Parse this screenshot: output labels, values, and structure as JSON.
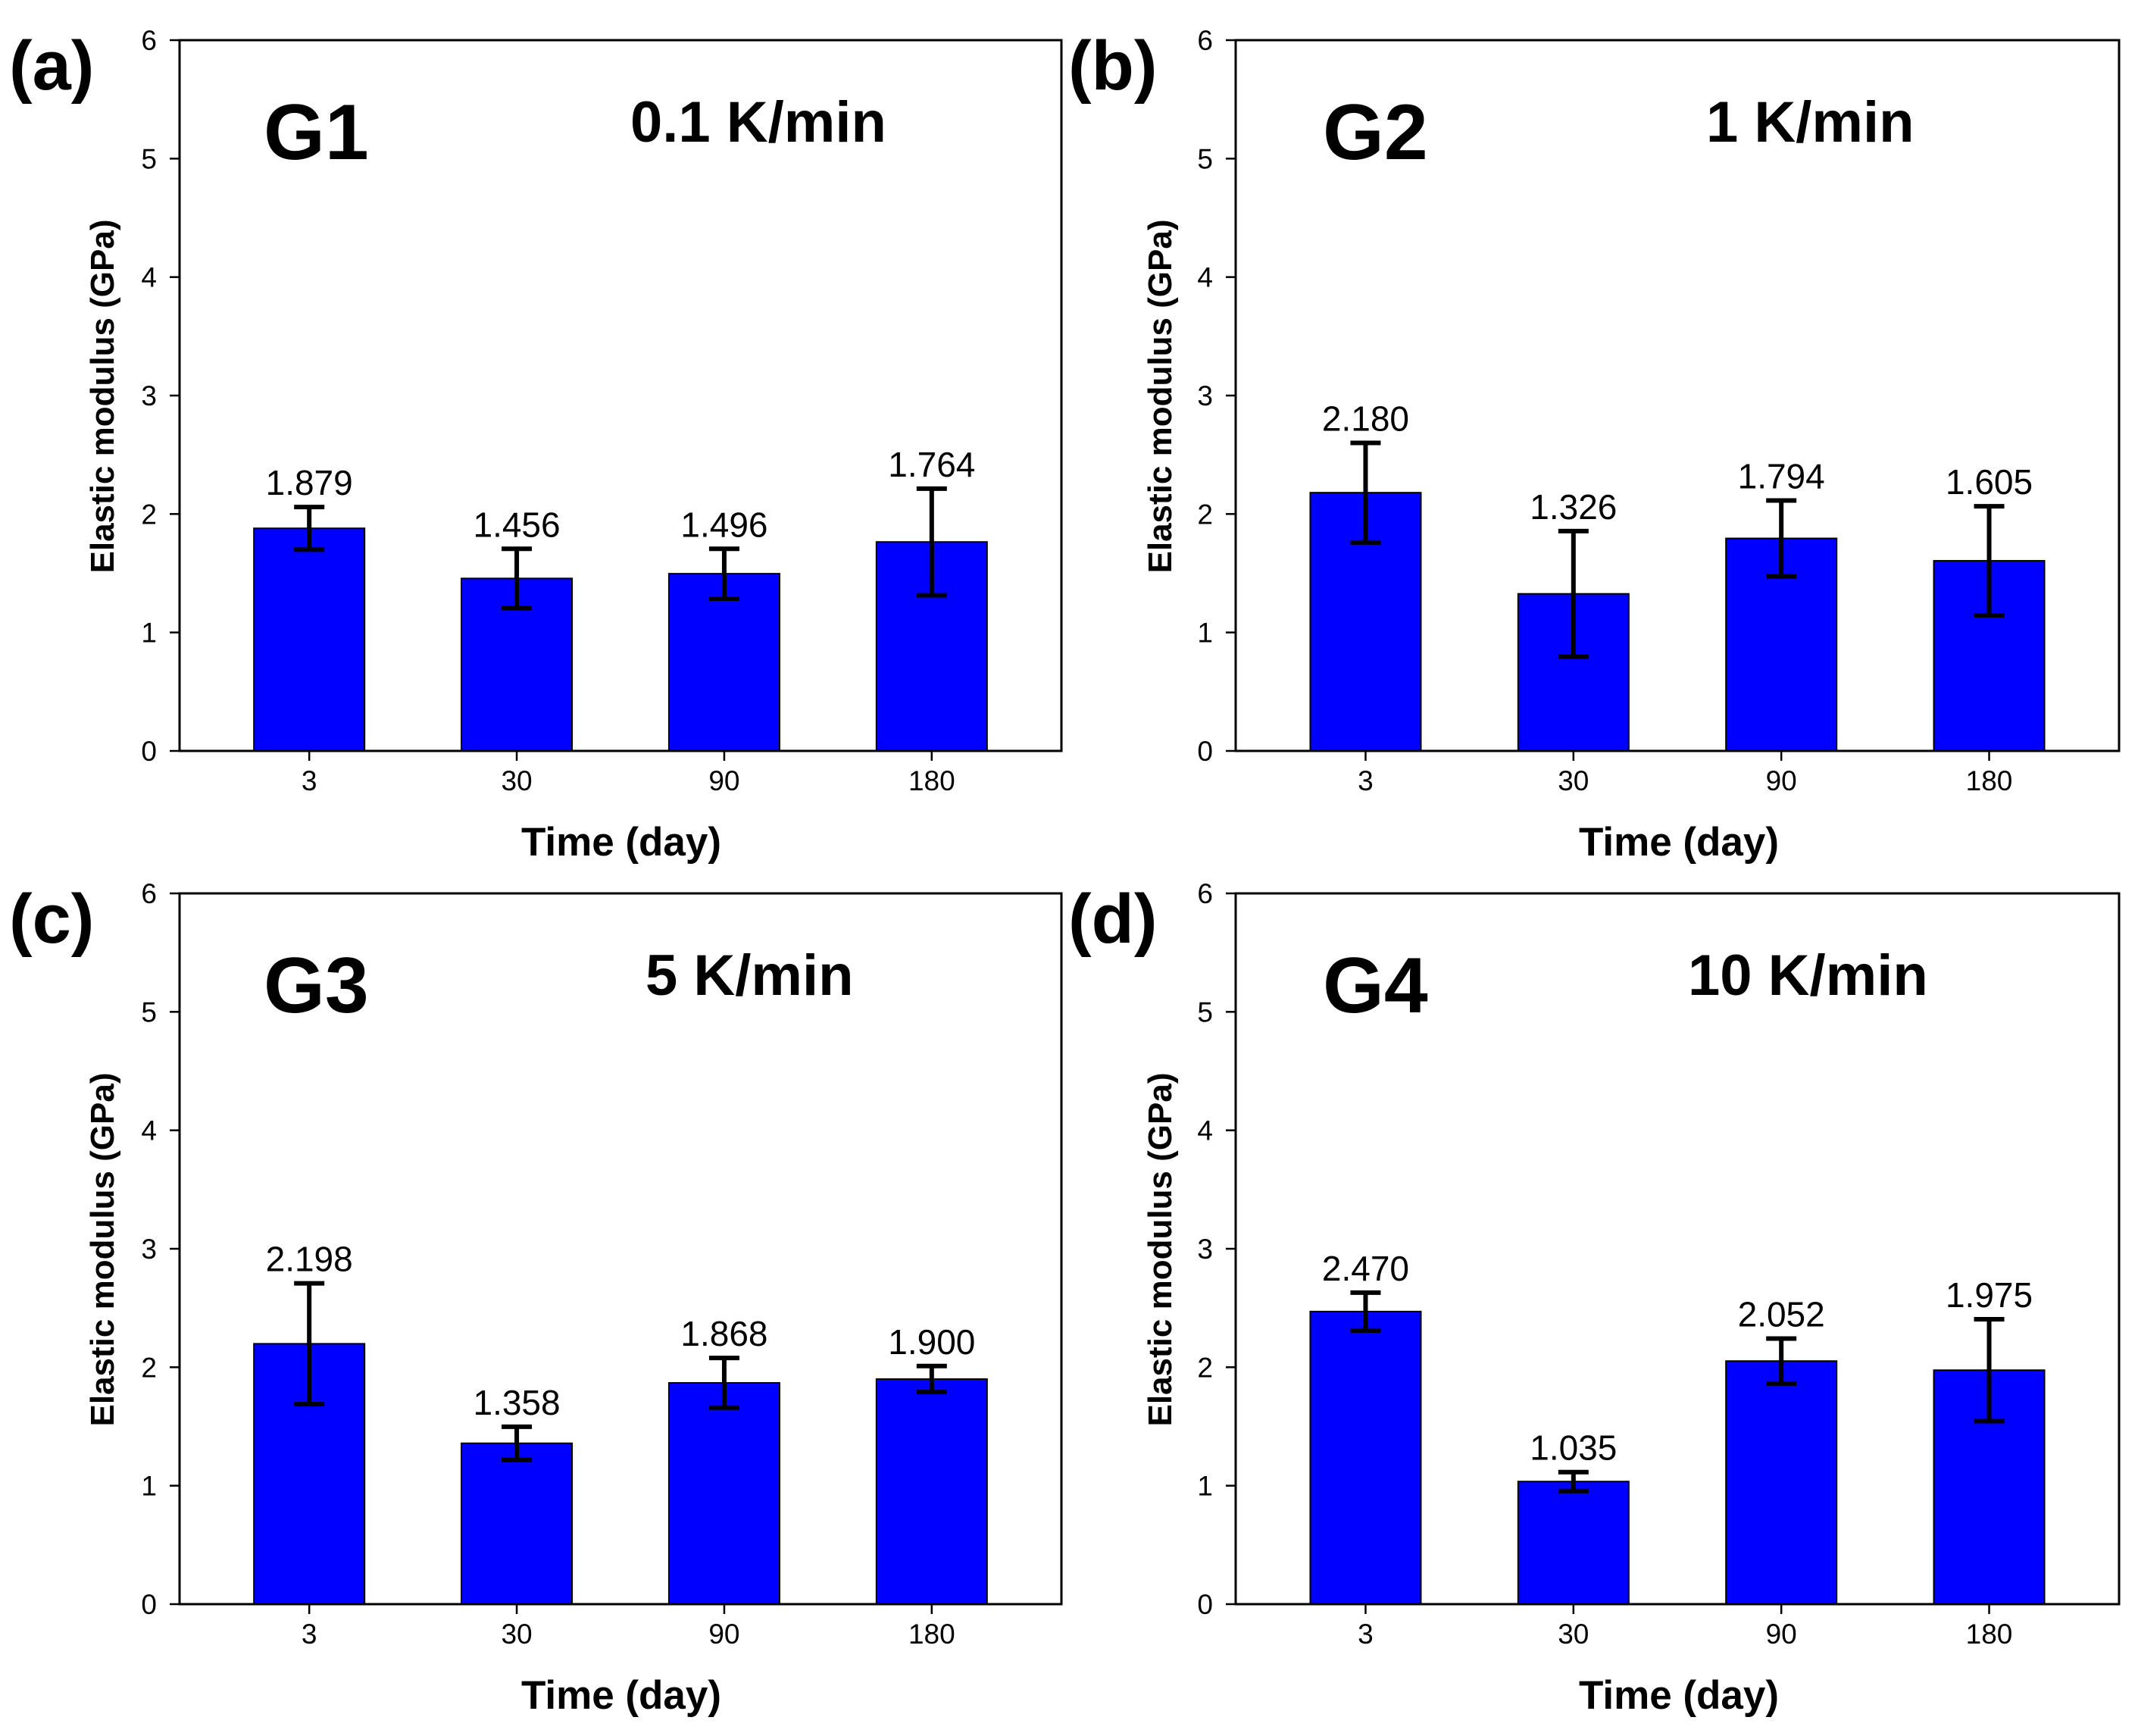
{
  "figure": {
    "bar_color": "#0000FF",
    "axis_color": "#000000",
    "background": "#FFFFFF"
  },
  "chart_data": [
    {
      "panel": "(a)",
      "type": "bar",
      "group": "G1",
      "rate": "0.1 K/min",
      "categories": [
        "3",
        "30",
        "90",
        "180"
      ],
      "values": [
        1.879,
        1.456,
        1.496,
        1.764
      ],
      "errors": [
        0.18,
        0.25,
        0.21,
        0.45
      ],
      "data_labels": [
        "1.879",
        "1.456",
        "1.496",
        "1.764"
      ],
      "xlabel": "Time (day)",
      "ylabel": "Elastic modulus (GPa)",
      "ylim": [
        0,
        6
      ],
      "yticks": [
        "0",
        "1",
        "2",
        "3",
        "4",
        "5",
        "6"
      ]
    },
    {
      "panel": "(b)",
      "type": "bar",
      "group": "G2",
      "rate": "1 K/min",
      "categories": [
        "3",
        "30",
        "90",
        "180"
      ],
      "values": [
        2.18,
        1.326,
        1.794,
        1.605
      ],
      "errors": [
        0.42,
        0.53,
        0.32,
        0.46
      ],
      "data_labels": [
        "2.180",
        "1.326",
        "1.794",
        "1.605"
      ],
      "xlabel": "Time (day)",
      "ylabel": "Elastic modulus (GPa)",
      "ylim": [
        0,
        6
      ],
      "yticks": [
        "0",
        "1",
        "2",
        "3",
        "4",
        "5",
        "6"
      ]
    },
    {
      "panel": "(c)",
      "type": "bar",
      "group": "G3",
      "rate": "5 K/min",
      "categories": [
        "3",
        "30",
        "90",
        "180"
      ],
      "values": [
        2.198,
        1.358,
        1.868,
        1.9
      ],
      "errors": [
        0.51,
        0.14,
        0.21,
        0.11
      ],
      "data_labels": [
        "2.198",
        "1.358",
        "1.868",
        "1.900"
      ],
      "xlabel": "Time (day)",
      "ylabel": "Elastic modulus (GPa)",
      "ylim": [
        0,
        6
      ],
      "yticks": [
        "0",
        "1",
        "2",
        "3",
        "4",
        "5",
        "6"
      ]
    },
    {
      "panel": "(d)",
      "type": "bar",
      "group": "G4",
      "rate": "10 K/min",
      "categories": [
        "3",
        "30",
        "90",
        "180"
      ],
      "values": [
        2.47,
        1.035,
        2.052,
        1.975
      ],
      "errors": [
        0.16,
        0.08,
        0.19,
        0.43
      ],
      "data_labels": [
        "2.470",
        "1.035",
        "2.052",
        "1.975"
      ],
      "xlabel": "Time (day)",
      "ylabel": "Elastic modulus (GPa)",
      "ylim": [
        0,
        6
      ],
      "yticks": [
        "0",
        "1",
        "2",
        "3",
        "4",
        "5",
        "6"
      ]
    }
  ]
}
